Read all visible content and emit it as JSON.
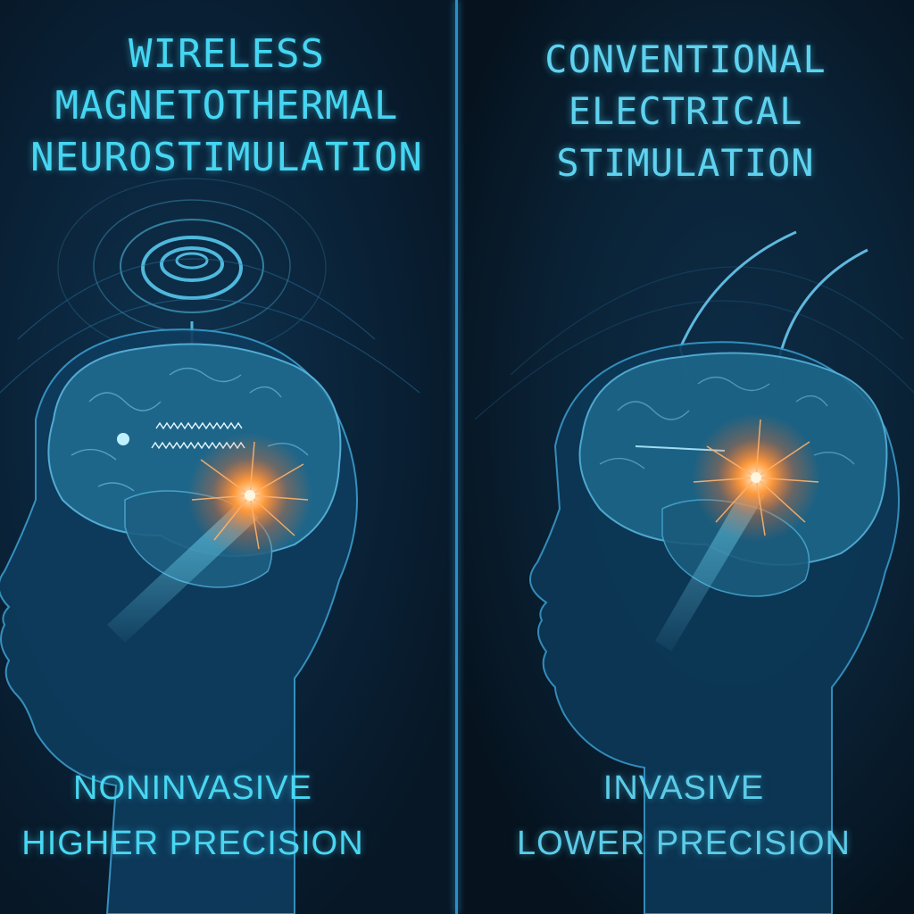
{
  "left_panel": {
    "title_lines": [
      "WIRELESS",
      "MAGNETOTHERMAL",
      "NEUROSTIMULATION"
    ],
    "caption_lines": [
      "NONINVASIVE",
      "HIGHER PRECISION"
    ],
    "device_icon": "magnetic-coil-icon",
    "stimulation_icon": "neural-spark-icon"
  },
  "right_panel": {
    "title_lines": [
      "CONVENTIONAL",
      "ELECTRICAL",
      "STIMULATION"
    ],
    "caption_lines": [
      "INVASIVE",
      "LOWER PRECISION"
    ],
    "device_icon": "implanted-electrode-icon",
    "stimulation_icon": "neural-spark-icon"
  },
  "colors": {
    "accent_cyan": "#46d6f2",
    "spark_orange": "#ff8a3a",
    "background": "#071726",
    "divider": "#2c8fc7"
  }
}
